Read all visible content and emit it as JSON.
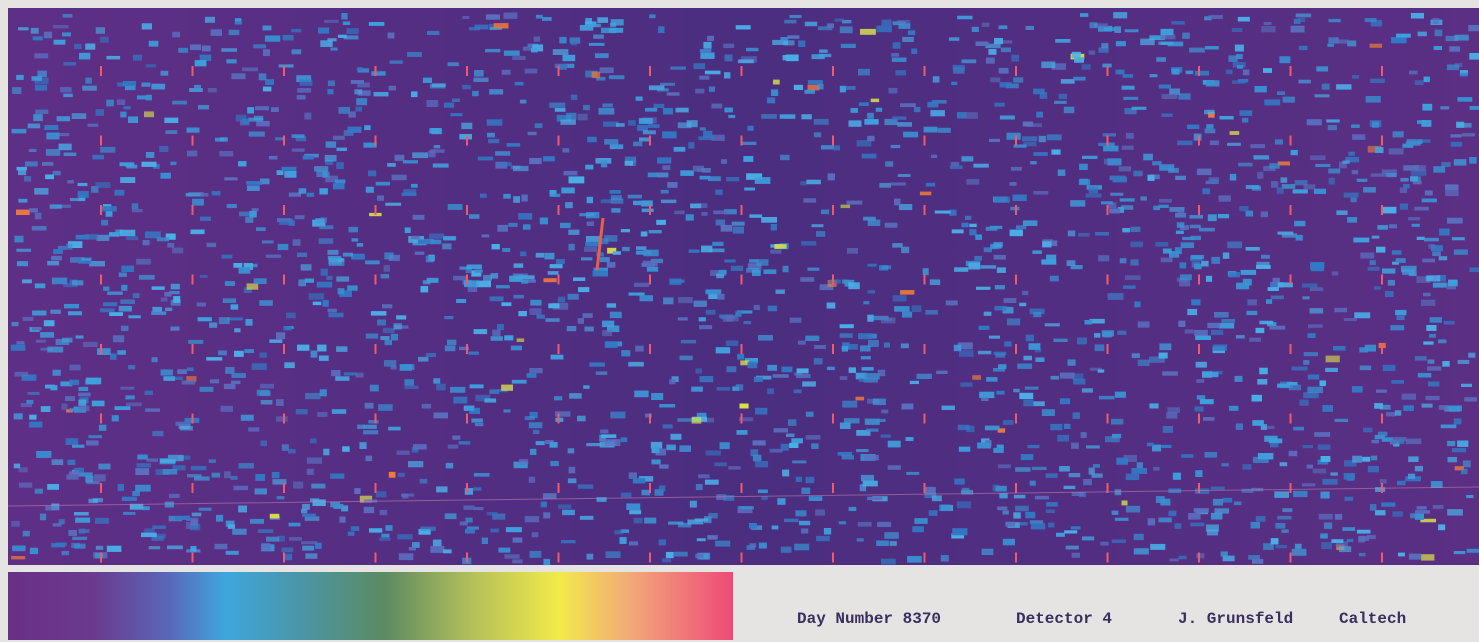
{
  "caption": {
    "day": "Day Number 8370",
    "detector": "Detector 4",
    "author": "J. Grunsfeld",
    "institution": "Caltech"
  }
}
